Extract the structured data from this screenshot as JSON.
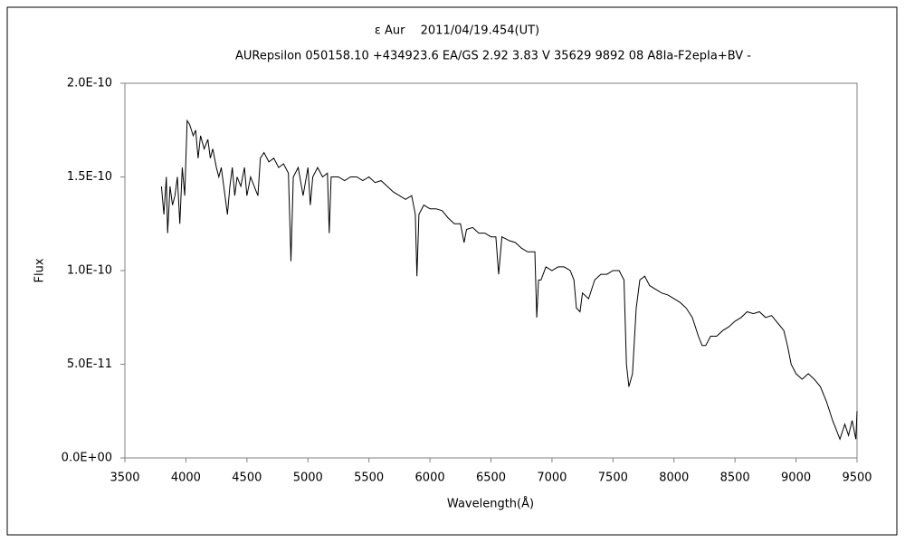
{
  "chart_data": {
    "type": "line",
    "title": "ε Aur　 2011/04/19.454(UT)",
    "subtitle": "AURepsilon 050158.10 +434923.6 EA/GS 2.92 3.83 V 35629 9892 08 A8Ia-F2epIa+BV -",
    "x_label": "Wavelength(Å)",
    "y_label": "Flux",
    "xlim": [
      3500,
      9500
    ],
    "ylim": [
      0,
      2e-10
    ],
    "xticks": [
      3500,
      4000,
      4500,
      5000,
      5500,
      6000,
      6500,
      7000,
      7500,
      8000,
      8500,
      9000,
      9500
    ],
    "yticks": [
      {
        "value": 0,
        "label": "0.0E+00"
      },
      {
        "value": 5e-11,
        "label": "5.0E-11"
      },
      {
        "value": 1e-10,
        "label": "1.0E-10"
      },
      {
        "value": 1.5e-10,
        "label": "1.5E-10"
      },
      {
        "value": 2e-10,
        "label": "2.0E-10"
      }
    ],
    "color": "#000000",
    "x": [
      3800,
      3820,
      3840,
      3850,
      3870,
      3890,
      3910,
      3930,
      3950,
      3970,
      3990,
      4010,
      4030,
      4060,
      4080,
      4100,
      4120,
      4150,
      4180,
      4200,
      4220,
      4250,
      4270,
      4290,
      4320,
      4340,
      4360,
      4380,
      4400,
      4420,
      4450,
      4480,
      4500,
      4530,
      4560,
      4590,
      4610,
      4640,
      4680,
      4720,
      4760,
      4800,
      4840,
      4861,
      4880,
      4920,
      4960,
      5000,
      5020,
      5040,
      5080,
      5120,
      5160,
      5175,
      5190,
      5250,
      5300,
      5350,
      5400,
      5450,
      5500,
      5550,
      5600,
      5650,
      5700,
      5750,
      5800,
      5850,
      5880,
      5893,
      5910,
      5950,
      6000,
      6050,
      6100,
      6150,
      6200,
      6250,
      6280,
      6300,
      6350,
      6400,
      6450,
      6500,
      6540,
      6563,
      6590,
      6650,
      6700,
      6750,
      6800,
      6860,
      6875,
      6890,
      6910,
      6950,
      7000,
      7050,
      7100,
      7150,
      7180,
      7200,
      7230,
      7250,
      7300,
      7350,
      7400,
      7450,
      7500,
      7550,
      7590,
      7610,
      7630,
      7660,
      7690,
      7720,
      7760,
      7800,
      7850,
      7900,
      7950,
      8000,
      8050,
      8100,
      8150,
      8200,
      8230,
      8260,
      8300,
      8350,
      8400,
      8450,
      8500,
      8550,
      8600,
      8650,
      8700,
      8750,
      8800,
      8850,
      8900,
      8930,
      8960,
      9000,
      9050,
      9100,
      9150,
      9200,
      9250,
      9300,
      9330,
      9360,
      9400,
      9430,
      9460,
      9490,
      9500
    ],
    "values": [
      1.45e-10,
      1.3e-10,
      1.5e-10,
      1.2e-10,
      1.45e-10,
      1.35e-10,
      1.4e-10,
      1.5e-10,
      1.25e-10,
      1.55e-10,
      1.4e-10,
      1.8e-10,
      1.78e-10,
      1.72e-10,
      1.75e-10,
      1.6e-10,
      1.72e-10,
      1.65e-10,
      1.7e-10,
      1.6e-10,
      1.65e-10,
      1.55e-10,
      1.5e-10,
      1.55e-10,
      1.4e-10,
      1.3e-10,
      1.45e-10,
      1.55e-10,
      1.4e-10,
      1.5e-10,
      1.45e-10,
      1.55e-10,
      1.4e-10,
      1.5e-10,
      1.45e-10,
      1.4e-10,
      1.6e-10,
      1.63e-10,
      1.58e-10,
      1.6e-10,
      1.55e-10,
      1.57e-10,
      1.52e-10,
      1.05e-10,
      1.5e-10,
      1.55e-10,
      1.4e-10,
      1.55e-10,
      1.35e-10,
      1.5e-10,
      1.55e-10,
      1.5e-10,
      1.52e-10,
      1.2e-10,
      1.5e-10,
      1.5e-10,
      1.48e-10,
      1.5e-10,
      1.5e-10,
      1.48e-10,
      1.5e-10,
      1.47e-10,
      1.48e-10,
      1.45e-10,
      1.42e-10,
      1.4e-10,
      1.38e-10,
      1.4e-10,
      1.3e-10,
      9.7e-11,
      1.3e-10,
      1.35e-10,
      1.33e-10,
      1.33e-10,
      1.32e-10,
      1.28e-10,
      1.25e-10,
      1.25e-10,
      1.15e-10,
      1.22e-10,
      1.23e-10,
      1.2e-10,
      1.2e-10,
      1.18e-10,
      1.18e-10,
      9.8e-11,
      1.18e-10,
      1.16e-10,
      1.15e-10,
      1.12e-10,
      1.1e-10,
      1.1e-10,
      7.5e-11,
      9.5e-11,
      9.5e-11,
      1.02e-10,
      1e-10,
      1.02e-10,
      1.02e-10,
      1e-10,
      9.5e-11,
      8e-11,
      7.8e-11,
      8.8e-11,
      8.5e-11,
      9.5e-11,
      9.8e-11,
      9.8e-11,
      1e-10,
      1e-10,
      9.5e-11,
      5e-11,
      3.8e-11,
      4.5e-11,
      8e-11,
      9.5e-11,
      9.7e-11,
      9.2e-11,
      9e-11,
      8.8e-11,
      8.7e-11,
      8.5e-11,
      8.3e-11,
      8e-11,
      7.5e-11,
      6.5e-11,
      6e-11,
      6e-11,
      6.5e-11,
      6.5e-11,
      6.8e-11,
      7e-11,
      7.3e-11,
      7.5e-11,
      7.8e-11,
      7.7e-11,
      7.8e-11,
      7.5e-11,
      7.6e-11,
      7.2e-11,
      6.8e-11,
      6e-11,
      5e-11,
      4.5e-11,
      4.2e-11,
      4.5e-11,
      4.2e-11,
      3.8e-11,
      3e-11,
      2e-11,
      1.5e-11,
      1e-11,
      1.8e-11,
      1.2e-11,
      2e-11,
      1e-11,
      2.5e-11
    ]
  }
}
